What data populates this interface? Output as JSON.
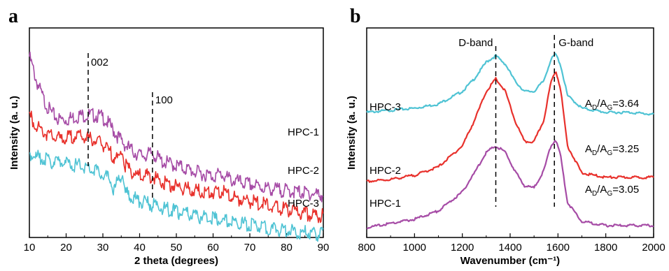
{
  "panels": {
    "a": {
      "letter": "a"
    },
    "b": {
      "letter": "b"
    }
  },
  "chart_data": [
    {
      "type": "line",
      "panel": "a",
      "xlabel": "2 theta  (degrees)",
      "ylabel": "Intensity (a. u.)",
      "xlim": [
        10,
        90
      ],
      "xticks": [
        "10",
        "20",
        "30",
        "40",
        "50",
        "60",
        "70",
        "80",
        "90"
      ],
      "yticks": [],
      "grid": false,
      "annotations": [
        {
          "label": "002",
          "x": 26
        },
        {
          "label": "100",
          "x": 43.5
        }
      ],
      "series": [
        {
          "name": "HPC-1",
          "color": "#a64ca6",
          "x": [
            10,
            12,
            14,
            16,
            18,
            20,
            22,
            24,
            26,
            28,
            30,
            32,
            34,
            36,
            38,
            40,
            42,
            43.5,
            46,
            50,
            55,
            60,
            62,
            65,
            70,
            75,
            80,
            85,
            90
          ],
          "y": [
            0.88,
            0.76,
            0.67,
            0.61,
            0.58,
            0.58,
            0.59,
            0.6,
            0.6,
            0.6,
            0.59,
            0.55,
            0.5,
            0.46,
            0.43,
            0.41,
            0.41,
            0.42,
            0.38,
            0.36,
            0.33,
            0.31,
            0.32,
            0.29,
            0.27,
            0.25,
            0.24,
            0.23,
            0.22
          ]
        },
        {
          "name": "HPC-2",
          "color": "#e8312c",
          "x": [
            10,
            12,
            14,
            16,
            18,
            20,
            22,
            24,
            26,
            28,
            30,
            32,
            34,
            35.3,
            36,
            38,
            40,
            42,
            43.5,
            46,
            50,
            55,
            60,
            62,
            65,
            70,
            75,
            80,
            85,
            90
          ],
          "y": [
            0.6,
            0.55,
            0.52,
            0.5,
            0.49,
            0.49,
            0.5,
            0.5,
            0.49,
            0.48,
            0.46,
            0.42,
            0.39,
            0.43,
            0.36,
            0.33,
            0.31,
            0.31,
            0.31,
            0.28,
            0.26,
            0.24,
            0.23,
            0.24,
            0.21,
            0.19,
            0.17,
            0.15,
            0.13,
            0.12
          ]
        },
        {
          "name": "HPC-3",
          "color": "#4fc3d4",
          "x": [
            10,
            12,
            14,
            16,
            18,
            20,
            22,
            24,
            26,
            28,
            30,
            32,
            33,
            34,
            35.3,
            36,
            38,
            40,
            42,
            44,
            46,
            50,
            55,
            60,
            65,
            70,
            75,
            80,
            85,
            90
          ],
          "y": [
            0.42,
            0.4,
            0.39,
            0.38,
            0.38,
            0.37,
            0.36,
            0.36,
            0.35,
            0.34,
            0.32,
            0.29,
            0.24,
            0.28,
            0.33,
            0.23,
            0.21,
            0.19,
            0.18,
            0.17,
            0.16,
            0.14,
            0.12,
            0.11,
            0.09,
            0.08,
            0.06,
            0.05,
            0.04,
            0.03
          ]
        }
      ]
    },
    {
      "type": "line",
      "panel": "b",
      "xlabel": "Wavenumber (cm⁻¹)",
      "ylabel": "Intensity (a. u.)",
      "xlim": [
        800,
        2000
      ],
      "xticks": [
        "800",
        "1000",
        "1200",
        "1400",
        "1600",
        "1800",
        "2000"
      ],
      "yticks": [],
      "grid": false,
      "annotations": [
        {
          "label": "D-band",
          "x": 1340
        },
        {
          "label": "G-band",
          "x": 1585
        }
      ],
      "series": [
        {
          "name": "HPC-3",
          "color": "#4fc3d4",
          "ratio_label": "AD/AG=3.64",
          "ratio_main": "A",
          "ratio_sub1": "D",
          "ratio_mid": "/A",
          "ratio_sub2": "G",
          "ratio_tail": "=3.64",
          "x": [
            800,
            900,
            1000,
            1100,
            1200,
            1250,
            1300,
            1340,
            1380,
            1420,
            1460,
            1500,
            1540,
            1570,
            1590,
            1610,
            1640,
            1700,
            1800,
            1900,
            2000
          ],
          "y": [
            0.6,
            0.61,
            0.62,
            0.64,
            0.7,
            0.76,
            0.84,
            0.87,
            0.83,
            0.75,
            0.7,
            0.7,
            0.75,
            0.85,
            0.88,
            0.83,
            0.68,
            0.62,
            0.6,
            0.6,
            0.59
          ]
        },
        {
          "name": "HPC-2",
          "color": "#e8312c",
          "ratio_label": "AD/AG=3.25",
          "ratio_main": "A",
          "ratio_sub1": "D",
          "ratio_mid": "/A",
          "ratio_sub2": "G",
          "ratio_tail": "=3.25",
          "x": [
            800,
            900,
            1000,
            1100,
            1200,
            1250,
            1300,
            1340,
            1380,
            1420,
            1460,
            1500,
            1540,
            1570,
            1590,
            1610,
            1640,
            1700,
            1800,
            1900,
            2000
          ],
          "y": [
            0.27,
            0.28,
            0.3,
            0.34,
            0.44,
            0.56,
            0.7,
            0.76,
            0.7,
            0.56,
            0.46,
            0.46,
            0.56,
            0.74,
            0.8,
            0.72,
            0.44,
            0.31,
            0.29,
            0.29,
            0.29
          ]
        },
        {
          "name": "HPC-1",
          "color": "#a64ca6",
          "ratio_label": "AD/AG=3.05",
          "ratio_main": "A",
          "ratio_sub1": "D",
          "ratio_mid": "/A",
          "ratio_sub2": "G",
          "ratio_tail": "=3.05",
          "x": [
            800,
            900,
            1000,
            1100,
            1200,
            1250,
            1300,
            1340,
            1380,
            1420,
            1460,
            1500,
            1540,
            1570,
            1590,
            1610,
            1640,
            1700,
            1800,
            1900,
            2000
          ],
          "y": [
            0.05,
            0.07,
            0.09,
            0.13,
            0.22,
            0.31,
            0.41,
            0.44,
            0.41,
            0.32,
            0.25,
            0.24,
            0.32,
            0.44,
            0.47,
            0.4,
            0.17,
            0.08,
            0.06,
            0.06,
            0.06
          ]
        }
      ]
    }
  ]
}
